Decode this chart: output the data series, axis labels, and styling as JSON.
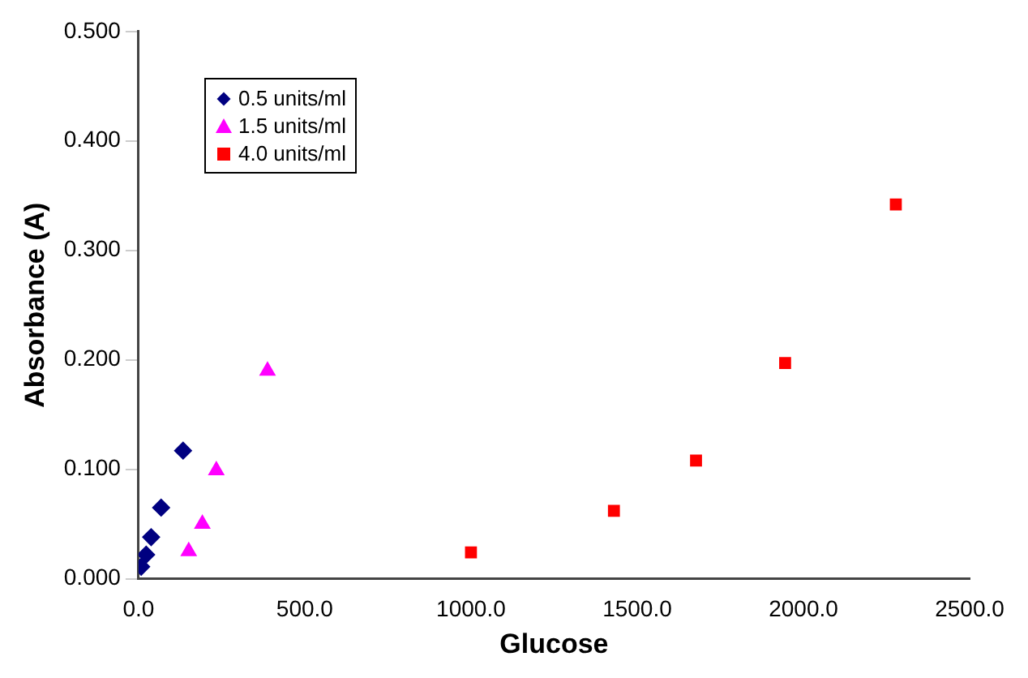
{
  "chart_data": {
    "type": "scatter",
    "xlabel": "Glucose",
    "ylabel": "Absorbance (A)",
    "xlim": [
      0,
      2500
    ],
    "ylim": [
      0,
      0.5
    ],
    "xticks": [
      {
        "value": 0,
        "label": "0.0"
      },
      {
        "value": 500,
        "label": "500.0"
      },
      {
        "value": 1000,
        "label": "1000.0"
      },
      {
        "value": 1500,
        "label": "1500.0"
      },
      {
        "value": 2000,
        "label": "2000.0"
      },
      {
        "value": 2500,
        "label": "2500.0"
      }
    ],
    "yticks": [
      {
        "value": 0,
        "label": "0.000"
      },
      {
        "value": 0.1,
        "label": "0.100"
      },
      {
        "value": 0.2,
        "label": "0.200"
      },
      {
        "value": 0.3,
        "label": "0.300"
      },
      {
        "value": 0.4,
        "label": "0.400"
      },
      {
        "value": 0.5,
        "label": "0.500"
      }
    ],
    "grid": false,
    "legend": "top left",
    "series": [
      {
        "name": "0.5 units/ml",
        "color": "#000080",
        "marker": "diamond",
        "x": [
          8,
          23,
          38,
          68,
          134
        ],
        "values": [
          0.011,
          0.022,
          0.038,
          0.065,
          0.117
        ]
      },
      {
        "name": "1.5 units/ml",
        "color": "#ff00ff",
        "marker": "triangle",
        "x": [
          151,
          192,
          234,
          388
        ],
        "values": [
          0.025,
          0.05,
          0.099,
          0.19
        ]
      },
      {
        "name": "4.0 units/ml",
        "color": "#ff0000",
        "marker": "square",
        "x": [
          1000,
          1430,
          1677,
          1945,
          2278
        ],
        "values": [
          0.024,
          0.062,
          0.108,
          0.197,
          0.342
        ]
      }
    ]
  }
}
